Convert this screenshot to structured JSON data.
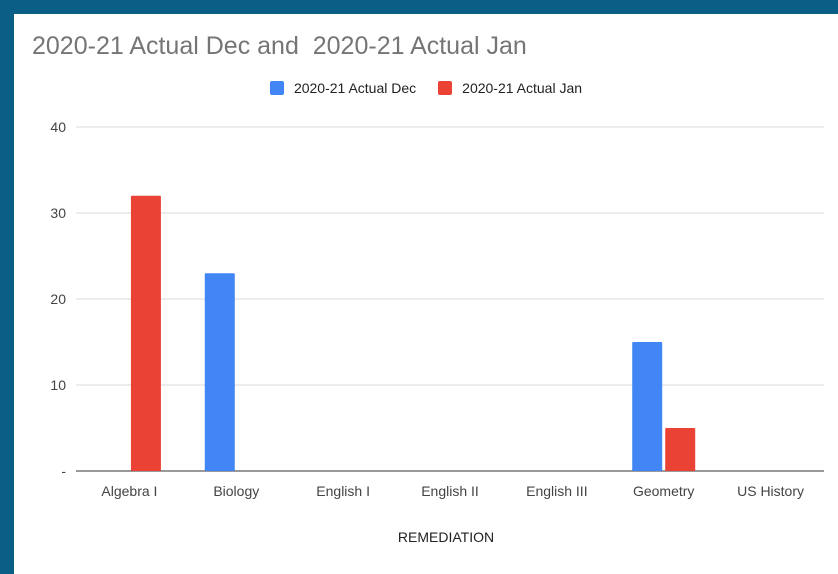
{
  "chart_data": {
    "type": "bar",
    "title": "2020-21 Actual Dec and  2020-21 Actual Jan",
    "xlabel": "REMEDIATION",
    "ylabel": "",
    "categories": [
      "Algebra I",
      "Biology",
      "English I",
      "English II",
      "English III",
      "Geometry",
      "US History"
    ],
    "series": [
      {
        "name": "2020-21 Actual Dec",
        "color": "#4285f4",
        "values": [
          0,
          23,
          0,
          0,
          0,
          15,
          0
        ]
      },
      {
        "name": "2020-21 Actual Jan",
        "color": "#ea4335",
        "values": [
          32,
          0,
          0,
          0,
          0,
          5,
          0
        ]
      }
    ],
    "ylim": [
      0,
      40
    ],
    "yticks": [
      {
        "value": 0,
        "label": "-"
      },
      {
        "value": 10,
        "label": "10"
      },
      {
        "value": 20,
        "label": "20"
      },
      {
        "value": 30,
        "label": "30"
      },
      {
        "value": 40,
        "label": "40"
      }
    ],
    "grid": true,
    "legend_position": "top"
  }
}
